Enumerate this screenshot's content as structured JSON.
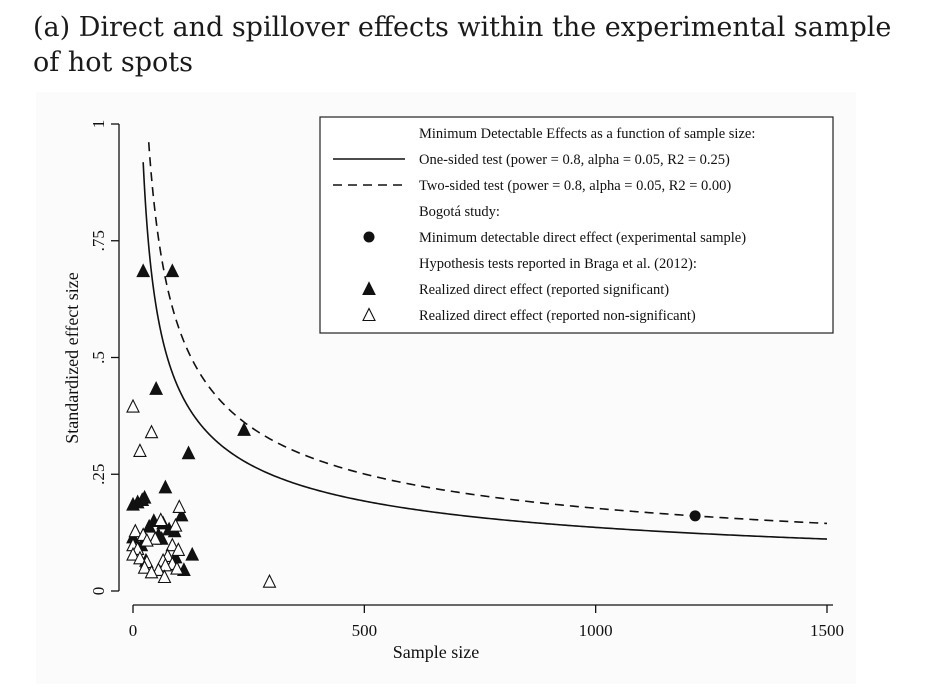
{
  "caption": "(a) Direct and spillover effects within the experimental sample of hot spots",
  "chart_data": {
    "type": "scatter",
    "title": "",
    "xlabel": "Sample size",
    "ylabel": "Standardized effect size",
    "xlim": [
      0,
      1500
    ],
    "ylim": [
      0,
      1
    ],
    "xticks": [
      {
        "value": 0,
        "label": "0"
      },
      {
        "value": 500,
        "label": "500"
      },
      {
        "value": 1000,
        "label": "1000"
      },
      {
        "value": 1500,
        "label": "1500"
      }
    ],
    "yticks": [
      {
        "value": 0,
        "label": "0"
      },
      {
        "value": 0.25,
        "label": ".25"
      },
      {
        "value": 0.5,
        "label": ".5"
      },
      {
        "value": 0.75,
        "label": ".75"
      },
      {
        "value": 1,
        "label": "1"
      }
    ],
    "legend": {
      "position": "top-right",
      "entries": [
        {
          "symbol": "none",
          "label": "Minimum Detectable Effects as a function of sample size:"
        },
        {
          "symbol": "solid-line",
          "label": "One-sided test (power = 0.8, alpha = 0.05, R2 = 0.25)"
        },
        {
          "symbol": "dashed-line",
          "label": "Two-sided test (power = 0.8, alpha = 0.05, R2 = 0.00)"
        },
        {
          "symbol": "none",
          "label": "Bogotá study:"
        },
        {
          "symbol": "filled-circle",
          "label": "Minimum detectable direct effect (experimental sample)"
        },
        {
          "symbol": "none",
          "label": "Hypothesis tests reported in Braga et al. (2012):"
        },
        {
          "symbol": "filled-triangle",
          "label": "Realized direct effect (reported significant)"
        },
        {
          "symbol": "hollow-triangle",
          "label": "Realized direct effect (reported non-significant)"
        }
      ]
    },
    "series": [
      {
        "name": "One-sided test (power = 0.8, alpha = 0.05, R2 = 0.25)",
        "kind": "curve",
        "style": "solid",
        "formula": "y = 2.4867 * sqrt(0.75) * 2 / sqrt(n)",
        "x_range": [
          22,
          1500
        ]
      },
      {
        "name": "Two-sided test (power = 0.8, alpha = 0.05, R2 = 0.00)",
        "kind": "curve",
        "style": "dashed",
        "formula": "y = 2.8016 * 2 / sqrt(n)",
        "x_range": [
          34,
          1500
        ]
      },
      {
        "name": "Minimum detectable direct effect (experimental sample)",
        "kind": "points",
        "marker": "filled-circle",
        "points": [
          [
            1215,
            0.161
          ]
        ]
      },
      {
        "name": "Realized direct effect (reported significant)",
        "kind": "points",
        "marker": "filled-triangle",
        "points": [
          [
            22,
            0.685
          ],
          [
            85,
            0.685
          ],
          [
            50,
            0.433
          ],
          [
            240,
            0.345
          ],
          [
            120,
            0.295
          ],
          [
            70,
            0.222
          ],
          [
            25,
            0.2
          ],
          [
            20,
            0.195
          ],
          [
            10,
            0.19
          ],
          [
            0,
            0.185
          ],
          [
            105,
            0.162
          ],
          [
            45,
            0.15
          ],
          [
            65,
            0.145
          ],
          [
            35,
            0.138
          ],
          [
            78,
            0.132
          ],
          [
            90,
            0.128
          ],
          [
            55,
            0.12
          ],
          [
            0,
            0.115
          ],
          [
            62,
            0.112
          ],
          [
            128,
            0.078
          ],
          [
            92,
            0.072
          ],
          [
            110,
            0.045
          ],
          [
            28,
            0.065
          ],
          [
            18,
            0.098
          ]
        ]
      },
      {
        "name": "Realized direct effect (reported non-significant)",
        "kind": "points",
        "marker": "hollow-triangle",
        "points": [
          [
            0,
            0.395
          ],
          [
            40,
            0.34
          ],
          [
            15,
            0.3
          ],
          [
            100,
            0.18
          ],
          [
            60,
            0.152
          ],
          [
            92,
            0.14
          ],
          [
            5,
            0.128
          ],
          [
            22,
            0.12
          ],
          [
            48,
            0.112
          ],
          [
            30,
            0.108
          ],
          [
            0,
            0.098
          ],
          [
            85,
            0.098
          ],
          [
            10,
            0.09
          ],
          [
            98,
            0.088
          ],
          [
            0,
            0.078
          ],
          [
            75,
            0.075
          ],
          [
            15,
            0.07
          ],
          [
            65,
            0.065
          ],
          [
            30,
            0.062
          ],
          [
            85,
            0.058
          ],
          [
            70,
            0.055
          ],
          [
            25,
            0.05
          ],
          [
            95,
            0.048
          ],
          [
            55,
            0.045
          ],
          [
            40,
            0.04
          ],
          [
            68,
            0.03
          ],
          [
            295,
            0.02
          ]
        ]
      }
    ]
  }
}
